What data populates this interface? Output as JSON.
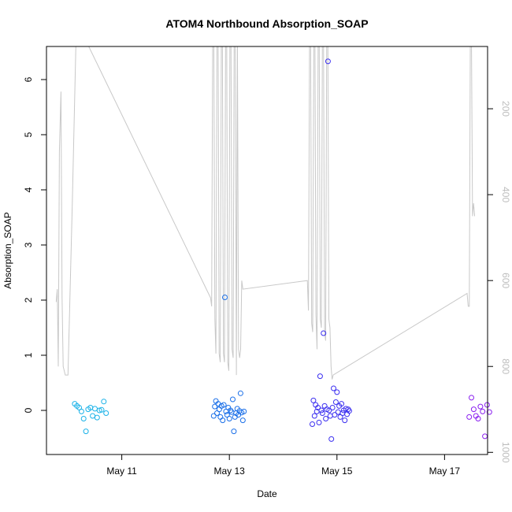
{
  "chart_data": {
    "type": "scatter",
    "title": "ATOM4 Northbound Absorption_SOAP",
    "xlabel": "Date",
    "ylabel": "Absorption_SOAP",
    "x_ticks": [
      "May 11",
      "May 13",
      "May 15",
      "May 17"
    ],
    "y_ticks": [
      "0",
      "1",
      "2",
      "3",
      "4",
      "5",
      "6"
    ],
    "y_right_ticks": [
      "200",
      "400",
      "600",
      "800",
      "1000"
    ],
    "ylim": [
      -0.8,
      6.6
    ],
    "y_right_lim": [
      1005,
      55
    ],
    "xlim_days": [
      9.6,
      17.8
    ],
    "colors": {
      "day1": "#1ab2e8",
      "day2": "#1a6fe8",
      "day3": "#3b2ff0",
      "day4": "#8a1ff0",
      "depth_line": "#c8c8c8"
    },
    "series": [
      {
        "color": "day1",
        "x": [
          "May 10 03:00",
          "May 10 04:00",
          "May 10 05:00",
          "May 10 06:00",
          "May 10 07:00",
          "May 10 08:00",
          "May 10 09:00",
          "May 10 10:00",
          "May 10 11:00",
          "May 10 12:00",
          "May 10 13:00",
          "May 10 14:00",
          "May 10 15:00",
          "May 10 16:00",
          "May 10 17:00"
        ],
        "y": [
          0.12,
          0.08,
          0.05,
          -0.02,
          -0.15,
          -0.38,
          0.02,
          0.05,
          -0.1,
          0.03,
          -0.13,
          0.0,
          0.01,
          0.16,
          -0.05
        ]
      },
      {
        "color": "day2",
        "x": [
          "May 12 17:00",
          "May 12 17:30",
          "May 12 18:00",
          "May 12 18:30",
          "May 12 19:00",
          "May 12 19:30",
          "May 12 20:00",
          "May 12 20:30",
          "May 12 21:00",
          "May 12 21:30",
          "May 12 22:00",
          "May 12 22:30",
          "May 12 23:00",
          "May 12 23:30",
          "May 13 00:00",
          "May 13 00:30",
          "May 13 01:00",
          "May 13 01:30",
          "May 13 02:00",
          "May 13 02:30",
          "May 13 03:00",
          "May 13 03:30",
          "May 13 04:00",
          "May 13 04:30",
          "May 13 05:00",
          "May 13 05:30",
          "May 13 06:00",
          "May 13 06:30"
        ],
        "y": [
          -0.1,
          0.07,
          0.17,
          -0.05,
          0.12,
          0.02,
          -0.12,
          0.08,
          -0.18,
          0.1,
          2.05,
          -0.02,
          -0.08,
          0.05,
          -0.15,
          0.0,
          -0.03,
          0.2,
          -0.38,
          -0.12,
          -0.05,
          0.03,
          -0.08,
          -0.01,
          0.31,
          -0.04,
          -0.18,
          -0.02
        ]
      },
      {
        "color": "day3",
        "x": [
          "May 14 13:00",
          "May 14 13:30",
          "May 14 14:00",
          "May 14 14:30",
          "May 14 15:00",
          "May 14 15:30",
          "May 14 16:00",
          "May 14 16:30",
          "May 14 17:00",
          "May 14 17:30",
          "May 14 18:00",
          "May 14 18:30",
          "May 14 19:00",
          "May 14 19:30",
          "May 14 20:00",
          "May 14 20:30",
          "May 14 21:00",
          "May 14 21:30",
          "May 14 22:00",
          "May 14 22:30",
          "May 14 23:00",
          "May 14 23:30",
          "May 15 00:00",
          "May 15 00:30",
          "May 15 01:00",
          "May 15 01:30",
          "May 15 02:00",
          "May 15 02:30",
          "May 15 03:00",
          "May 15 03:30",
          "May 15 04:00",
          "May 15 04:30",
          "May 15 05:00",
          "May 15 05:30"
        ],
        "y": [
          -0.25,
          0.18,
          -0.1,
          0.1,
          -0.02,
          0.05,
          -0.22,
          0.62,
          0.0,
          -0.05,
          1.4,
          0.08,
          -0.15,
          0.02,
          6.33,
          0.0,
          -0.1,
          -0.52,
          0.05,
          0.4,
          -0.08,
          0.15,
          0.33,
          -0.03,
          0.08,
          -0.12,
          0.12,
          -0.05,
          0.0,
          -0.18,
          0.03,
          -0.07,
          0.02,
          -0.01
        ]
      },
      {
        "color": "day4",
        "x": [
          "May 17 11:00",
          "May 17 12:00",
          "May 17 13:00",
          "May 17 14:00",
          "May 17 15:00",
          "May 17 16:00",
          "May 17 17:00",
          "May 17 18:00",
          "May 17 19:00",
          "May 17 20:00"
        ],
        "y": [
          -0.12,
          0.23,
          0.02,
          -0.1,
          -0.15,
          0.07,
          -0.02,
          -0.47,
          0.1,
          -0.03
        ]
      }
    ],
    "depth_line": {
      "x": [
        9.78,
        9.8,
        9.82,
        9.84,
        9.87,
        9.89,
        9.91,
        9.95,
        10.0,
        10.08,
        10.15,
        10.25,
        12.65,
        12.67,
        12.69,
        12.71,
        12.73,
        12.75,
        12.77,
        12.79,
        12.81,
        12.83,
        12.85,
        12.87,
        12.89,
        12.91,
        12.93,
        12.95,
        12.97,
        12.99,
        13.01,
        13.03,
        13.05,
        13.07,
        13.09,
        13.11,
        13.13,
        13.15,
        13.17,
        13.19,
        13.21,
        13.23,
        13.25,
        14.45,
        14.47,
        14.49,
        14.51,
        14.53,
        14.55,
        14.57,
        14.59,
        14.61,
        14.63,
        14.65,
        14.67,
        14.69,
        14.71,
        14.73,
        14.75,
        14.77,
        14.79,
        14.81,
        14.83,
        14.85,
        14.87,
        14.89,
        14.91,
        14.93,
        17.42,
        17.44,
        17.46,
        17.48,
        17.5,
        17.52,
        17.54,
        17.56
      ],
      "y": [
        650,
        620,
        800,
        300,
        160,
        640,
        800,
        820,
        820,
        420,
        30,
        20,
        640,
        660,
        30,
        30,
        690,
        770,
        30,
        30,
        770,
        790,
        30,
        30,
        770,
        790,
        30,
        30,
        790,
        810,
        30,
        30,
        760,
        780,
        30,
        30,
        820,
        30,
        760,
        780,
        760,
        600,
        620,
        600,
        670,
        30,
        30,
        700,
        720,
        30,
        30,
        680,
        760,
        30,
        30,
        690,
        710,
        30,
        30,
        720,
        740,
        30,
        30,
        690,
        710,
        800,
        830,
        820,
        630,
        660,
        660,
        30,
        30,
        450,
        420,
        450
      ]
    }
  }
}
